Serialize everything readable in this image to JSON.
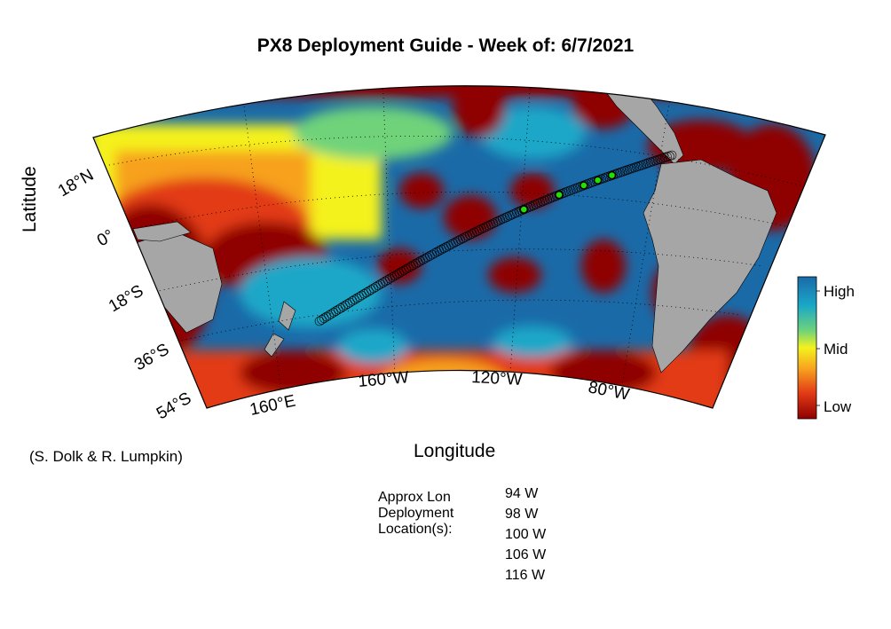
{
  "title": "PX8 Deployment Guide - Week of: 6/7/2021",
  "axes": {
    "xlabel": "Longitude",
    "ylabel": "Latitude",
    "lat_ticks": [
      "18°N",
      "0°",
      "18°S",
      "36°S",
      "54°S"
    ],
    "lon_ticks": [
      "160°E",
      "160°W",
      "120°W",
      "80°W"
    ]
  },
  "colorbar": {
    "labels": [
      "High",
      "Mid",
      "Low"
    ],
    "colors": [
      "#1a6aa8",
      "#1aa7c8",
      "#6fd37a",
      "#f4f21e",
      "#f7a11e",
      "#e23a16",
      "#8f0000"
    ]
  },
  "credit": "(S. Dolk & R. Lumpkin)",
  "deployment": {
    "label": "Approx Lon Deployment Location(s):",
    "locations": [
      "94 W",
      "98 W",
      "100 W",
      "106 W",
      "116 W"
    ]
  },
  "colors": {
    "land": "#a6a6a6",
    "high": "#1a6aa8",
    "low": "#8f0000",
    "deployment_point": "#22e000"
  }
}
